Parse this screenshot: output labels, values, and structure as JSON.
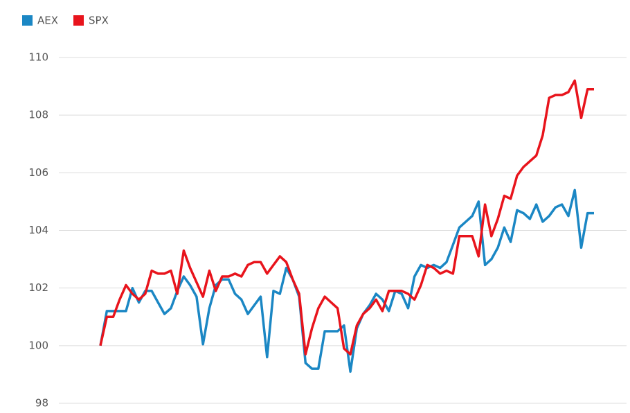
{
  "chart_data": {
    "type": "line",
    "series": [
      {
        "name": "AEX",
        "color": "#1b87c4",
        "values": [
          100,
          101.2,
          101.2,
          101.2,
          101.2,
          102.0,
          101.5,
          101.9,
          101.9,
          101.5,
          101.1,
          101.3,
          101.9,
          102.4,
          102.1,
          101.7,
          100.05,
          101.3,
          102.1,
          102.3,
          102.3,
          101.8,
          101.6,
          101.1,
          101.4,
          101.7,
          99.6,
          101.9,
          101.8,
          102.7,
          102.3,
          101.7,
          99.4,
          99.2,
          99.2,
          100.5,
          100.5,
          100.5,
          100.7,
          99.1,
          100.6,
          101.1,
          101.4,
          101.8,
          101.6,
          101.2,
          101.9,
          101.8,
          101.3,
          102.4,
          102.8,
          102.7,
          102.8,
          102.7,
          102.9,
          103.5,
          104.1,
          104.3,
          104.5,
          105.0,
          102.8,
          103.0,
          103.4,
          104.1,
          103.6,
          104.7,
          104.6,
          104.4,
          104.9,
          104.3,
          104.5,
          104.8,
          104.9,
          104.5,
          105.4,
          103.4,
          104.6,
          104.6
        ]
      },
      {
        "name": "SPX",
        "color": "#e8141c",
        "values": [
          100,
          101,
          101,
          101.6,
          102.1,
          101.8,
          101.6,
          101.8,
          102.6,
          102.5,
          102.5,
          102.6,
          101.8,
          103.3,
          102.7,
          102.2,
          101.7,
          102.6,
          101.9,
          102.4,
          102.4,
          102.5,
          102.4,
          102.8,
          102.9,
          102.9,
          102.5,
          102.8,
          103.1,
          102.9,
          102.3,
          101.8,
          99.7,
          100.6,
          101.3,
          101.7,
          101.5,
          101.3,
          99.9,
          99.7,
          100.7,
          101.1,
          101.3,
          101.6,
          101.2,
          101.9,
          101.9,
          101.9,
          101.8,
          101.6,
          102.1,
          102.8,
          102.7,
          102.5,
          102.6,
          102.5,
          103.8,
          103.8,
          103.8,
          103.1,
          104.9,
          103.8,
          104.4,
          105.2,
          105.1,
          105.9,
          106.2,
          106.4,
          106.6,
          107.3,
          108.6,
          108.7,
          108.7,
          108.8,
          109.2,
          107.9,
          108.9,
          108.9
        ]
      }
    ],
    "ylim": [
      98,
      110
    ],
    "yticks": [
      98,
      100,
      102,
      104,
      106,
      108,
      110
    ],
    "grid": true,
    "legend": "top-left"
  }
}
